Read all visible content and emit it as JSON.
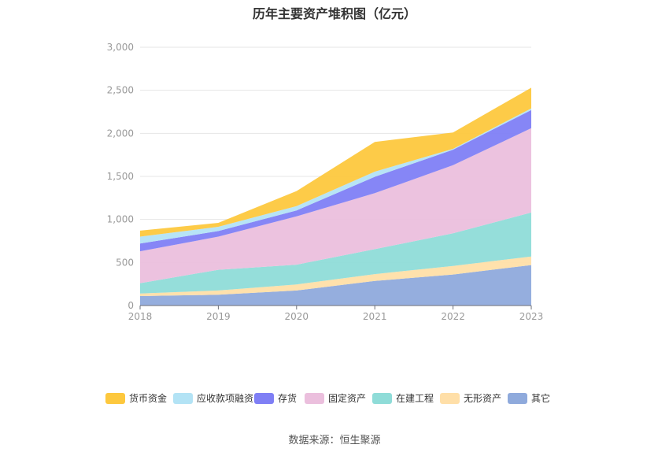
{
  "chart_data": {
    "type": "area",
    "stacked": true,
    "title": "历年主要资产堆积图（亿元）",
    "x": [
      "2018",
      "2019",
      "2020",
      "2021",
      "2022",
      "2023"
    ],
    "ylim": [
      0,
      3000
    ],
    "yticks": [
      0,
      500,
      1000,
      1500,
      2000,
      2500,
      3000
    ],
    "ytick_labels": [
      "0",
      "500",
      "1,000",
      "1,500",
      "2,000",
      "2,500",
      "3,000"
    ],
    "grid": true,
    "legend_position": "bottom",
    "series": [
      {
        "name": "其它",
        "color": "#8faadc",
        "values": [
          110,
          125,
          175,
          285,
          360,
          470
        ]
      },
      {
        "name": "无形资产",
        "color": "#ffdfa8",
        "values": [
          30,
          50,
          70,
          80,
          100,
          100
        ]
      },
      {
        "name": "在建工程",
        "color": "#8fdcd8",
        "values": [
          120,
          240,
          230,
          290,
          380,
          510
        ]
      },
      {
        "name": "固定资产",
        "color": "#ebbfdd",
        "values": [
          370,
          385,
          560,
          650,
          790,
          980
        ]
      },
      {
        "name": "存货",
        "color": "#7f7ff5",
        "values": [
          90,
          65,
          70,
          190,
          180,
          210
        ]
      },
      {
        "name": "应收款项融资",
        "color": "#b3e3f5",
        "values": [
          80,
          50,
          50,
          60,
          10,
          20
        ]
      },
      {
        "name": "货币资金",
        "color": "#fdc83e",
        "values": [
          70,
          45,
          175,
          345,
          190,
          240
        ]
      }
    ]
  },
  "source_text": "数据来源：恒生聚源"
}
